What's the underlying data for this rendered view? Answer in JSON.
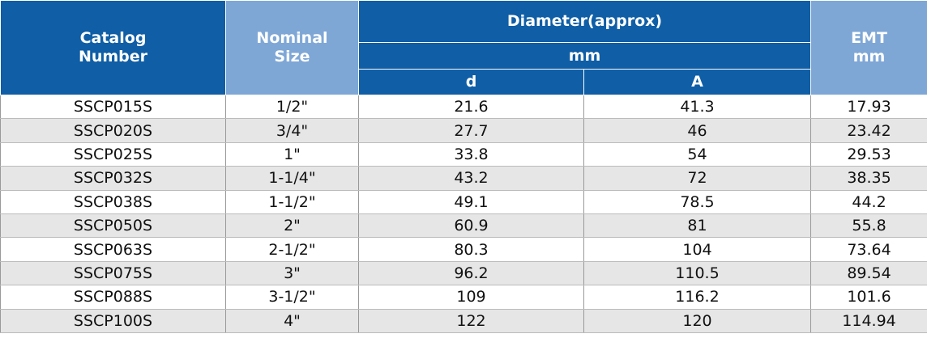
{
  "table": {
    "header": {
      "catalog": "Catalog\nNumber",
      "nominal": "Nominal\nSize",
      "diameter": "Diameter(approx)",
      "diameter_unit": "mm",
      "d": "d",
      "a": "A",
      "emt": "EMT\nmm"
    },
    "rows": [
      [
        "SSCP015S",
        "1/2\"",
        21.6,
        41.3,
        17.93
      ],
      [
        "SSCP020S",
        "3/4\"",
        27.7,
        46,
        23.42
      ],
      [
        "SSCP025S",
        "1\"",
        33.8,
        54,
        29.53
      ],
      [
        "SSCP032S",
        "1-1/4\"",
        43.2,
        72,
        38.35
      ],
      [
        "SSCP038S",
        "1-1/2\"",
        49.1,
        78.5,
        44.2
      ],
      [
        "SSCP050S",
        "2\"",
        60.9,
        81,
        55.8
      ],
      [
        "SSCP063S",
        "2-1/2\"",
        80.3,
        104,
        73.64
      ],
      [
        "SSCP075S",
        "3\"",
        96.2,
        110.5,
        89.54
      ],
      [
        "SSCP088S",
        "3-1/2\"",
        109,
        116.2,
        101.6
      ],
      [
        "SSCP100S",
        "4\"",
        122,
        120,
        114.94
      ]
    ]
  }
}
